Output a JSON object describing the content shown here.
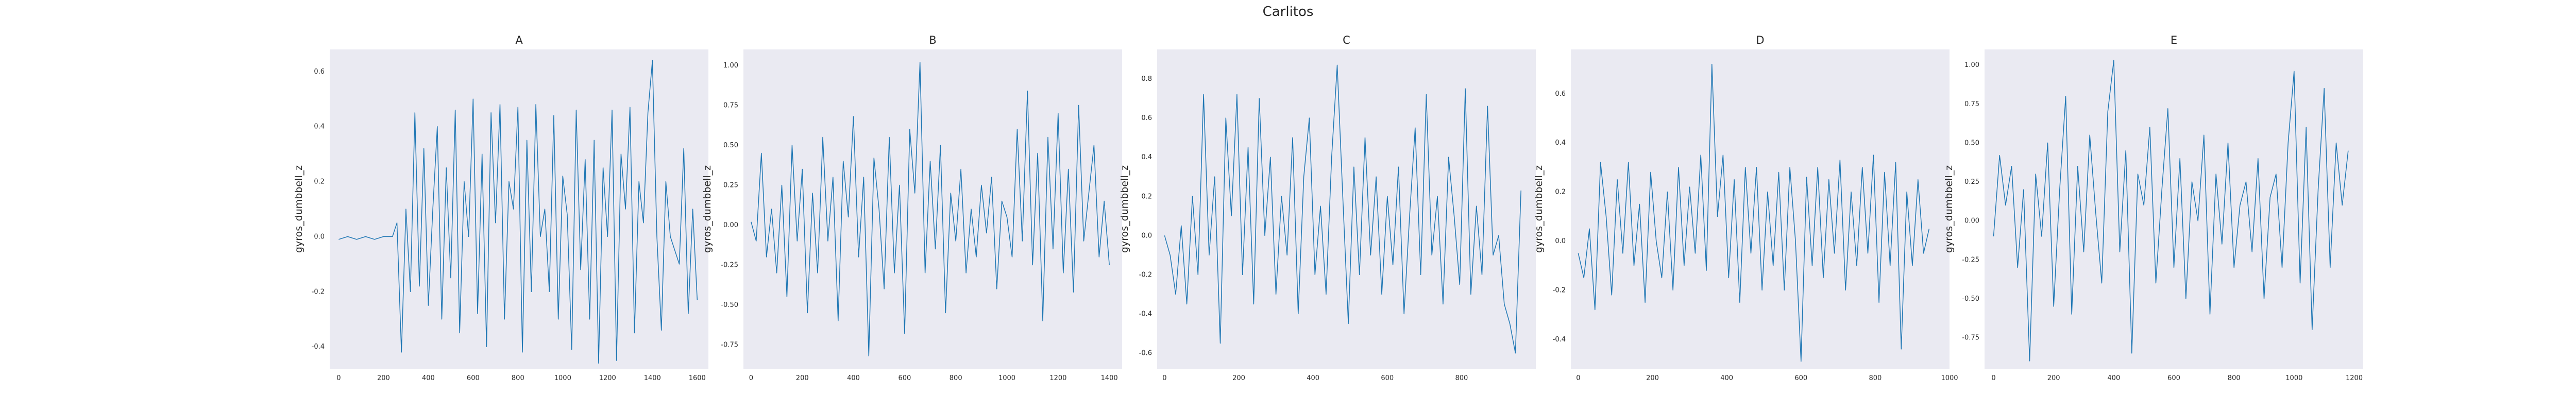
{
  "figure": {
    "title": "Carlitos"
  },
  "chart_data": [
    {
      "type": "line",
      "title": "A",
      "xlabel": "",
      "ylabel": "gyros_dumbbell_z",
      "xlim": [
        -40,
        1650
      ],
      "ylim": [
        -0.48,
        0.68
      ],
      "xticks": [
        0,
        200,
        400,
        600,
        800,
        1000,
        1200,
        1400,
        1600
      ],
      "yticks": [
        -0.4,
        -0.2,
        0.0,
        0.2,
        0.4,
        0.6
      ],
      "ytick_labels": [
        "-0.4",
        "-0.2",
        "0.0",
        "0.2",
        "0.4",
        "0.6"
      ],
      "color": "#1f77b4",
      "series": [
        {
          "x": [
            0,
            40,
            80,
            120,
            160,
            200,
            240,
            260,
            280,
            300,
            320,
            340,
            360,
            380,
            400,
            420,
            440,
            460,
            480,
            500,
            520,
            540,
            560,
            580,
            600,
            620,
            640,
            660,
            680,
            700,
            720,
            740,
            760,
            780,
            800,
            820,
            840,
            860,
            880,
            900,
            920,
            940,
            960,
            980,
            1000,
            1020,
            1040,
            1060,
            1080,
            1100,
            1120,
            1140,
            1160,
            1180,
            1200,
            1220,
            1240,
            1260,
            1280,
            1300,
            1320,
            1340,
            1360,
            1380,
            1400,
            1420,
            1440,
            1460,
            1480,
            1500,
            1520,
            1540,
            1560,
            1580,
            1600
          ],
          "y": [
            -0.01,
            0.0,
            -0.01,
            0.0,
            -0.01,
            0.0,
            0.0,
            0.05,
            -0.42,
            0.1,
            -0.2,
            0.45,
            -0.18,
            0.32,
            -0.25,
            0.1,
            0.4,
            -0.3,
            0.25,
            -0.15,
            0.46,
            -0.35,
            0.2,
            0.0,
            0.5,
            -0.28,
            0.3,
            -0.4,
            0.45,
            0.05,
            0.48,
            -0.3,
            0.2,
            0.1,
            0.47,
            -0.42,
            0.35,
            -0.2,
            0.48,
            0.0,
            0.1,
            -0.2,
            0.44,
            -0.3,
            0.22,
            0.08,
            -0.41,
            0.46,
            -0.12,
            0.28,
            -0.3,
            0.35,
            -0.46,
            0.25,
            0.0,
            0.46,
            -0.45,
            0.3,
            0.1,
            0.47,
            -0.35,
            0.2,
            0.05,
            0.45,
            0.64,
            0.0,
            -0.34,
            0.2,
            0.0,
            -0.05,
            -0.1,
            0.32,
            -0.28,
            0.1,
            -0.23
          ]
        }
      ]
    },
    {
      "type": "line",
      "title": "B",
      "xlabel": "",
      "ylabel": "gyros_dumbbell_z",
      "xlim": [
        -30,
        1450
      ],
      "ylim": [
        -0.9,
        1.1
      ],
      "xticks": [
        0,
        200,
        400,
        600,
        800,
        1000,
        1200,
        1400
      ],
      "yticks": [
        -0.75,
        -0.5,
        -0.25,
        0.0,
        0.25,
        0.5,
        0.75,
        1.0
      ],
      "ytick_labels": [
        "-0.75",
        "-0.50",
        "-0.25",
        "0.00",
        "0.25",
        "0.50",
        "0.75",
        "1.00"
      ],
      "color": "#1f77b4",
      "series": [
        {
          "x": [
            0,
            20,
            40,
            60,
            80,
            100,
            120,
            140,
            160,
            180,
            200,
            220,
            240,
            260,
            280,
            300,
            320,
            340,
            360,
            380,
            400,
            420,
            440,
            460,
            480,
            500,
            520,
            540,
            560,
            580,
            600,
            620,
            640,
            660,
            680,
            700,
            720,
            740,
            760,
            780,
            800,
            820,
            840,
            860,
            880,
            900,
            920,
            940,
            960,
            980,
            1000,
            1020,
            1040,
            1060,
            1080,
            1100,
            1120,
            1140,
            1160,
            1180,
            1200,
            1220,
            1240,
            1260,
            1280,
            1300,
            1320,
            1340,
            1360,
            1380,
            1400
          ],
          "y": [
            0.02,
            -0.1,
            0.45,
            -0.2,
            0.1,
            -0.3,
            0.25,
            -0.45,
            0.5,
            -0.1,
            0.35,
            -0.55,
            0.2,
            -0.3,
            0.55,
            -0.1,
            0.3,
            -0.6,
            0.4,
            0.05,
            0.68,
            -0.2,
            0.3,
            -0.82,
            0.42,
            0.1,
            -0.4,
            0.55,
            -0.3,
            0.25,
            -0.68,
            0.6,
            0.2,
            1.02,
            -0.3,
            0.4,
            -0.15,
            0.5,
            -0.55,
            0.2,
            -0.1,
            0.35,
            -0.3,
            0.1,
            -0.2,
            0.25,
            -0.05,
            0.3,
            -0.4,
            0.15,
            0.05,
            -0.2,
            0.6,
            -0.1,
            0.84,
            -0.25,
            0.45,
            -0.6,
            0.55,
            -0.15,
            0.7,
            -0.3,
            0.35,
            -0.42,
            0.75,
            -0.1,
            0.2,
            0.5,
            -0.2,
            0.15,
            -0.25
          ]
        }
      ]
    },
    {
      "type": "line",
      "title": "C",
      "xlabel": "",
      "ylabel": "gyros_dumbbell_z",
      "xlim": [
        -20,
        1000
      ],
      "ylim": [
        -0.68,
        0.95
      ],
      "xticks": [
        0,
        200,
        400,
        600,
        800
      ],
      "yticks": [
        -0.6,
        -0.4,
        -0.2,
        0.0,
        0.2,
        0.4,
        0.6,
        0.8
      ],
      "ytick_labels": [
        "-0.6",
        "-0.4",
        "-0.2",
        "0.0",
        "0.2",
        "0.4",
        "0.6",
        "0.8"
      ],
      "color": "#1f77b4",
      "series": [
        {
          "x": [
            0,
            15,
            30,
            45,
            60,
            75,
            90,
            105,
            120,
            135,
            150,
            165,
            180,
            195,
            210,
            225,
            240,
            255,
            270,
            285,
            300,
            315,
            330,
            345,
            360,
            375,
            390,
            405,
            420,
            435,
            450,
            465,
            480,
            495,
            510,
            525,
            540,
            555,
            570,
            585,
            600,
            615,
            630,
            645,
            660,
            675,
            690,
            705,
            720,
            735,
            750,
            765,
            780,
            795,
            810,
            825,
            840,
            855,
            870,
            885,
            900,
            915,
            930,
            945,
            960
          ],
          "y": [
            0.0,
            -0.1,
            -0.3,
            0.05,
            -0.35,
            0.2,
            -0.2,
            0.72,
            -0.1,
            0.3,
            -0.55,
            0.6,
            0.1,
            0.72,
            -0.2,
            0.45,
            -0.35,
            0.7,
            0.0,
            0.4,
            -0.3,
            0.2,
            -0.1,
            0.5,
            -0.4,
            0.3,
            0.6,
            -0.2,
            0.15,
            -0.3,
            0.4,
            0.87,
            0.2,
            -0.45,
            0.35,
            -0.2,
            0.5,
            -0.1,
            0.3,
            -0.3,
            0.2,
            -0.15,
            0.35,
            -0.4,
            0.1,
            0.55,
            -0.2,
            0.72,
            -0.1,
            0.2,
            -0.35,
            0.4,
            0.1,
            -0.25,
            0.75,
            -0.3,
            0.15,
            -0.2,
            0.66,
            -0.1,
            0.0,
            -0.35,
            -0.45,
            -0.6,
            0.23
          ]
        }
      ]
    },
    {
      "type": "line",
      "title": "D",
      "xlabel": "",
      "ylabel": "gyros_dumbbell_z",
      "xlim": [
        -20,
        1000
      ],
      "ylim": [
        -0.52,
        0.78
      ],
      "xticks": [
        0,
        200,
        400,
        600,
        800,
        1000
      ],
      "yticks": [
        -0.4,
        -0.2,
        0.0,
        0.2,
        0.4,
        0.6
      ],
      "ytick_labels": [
        "-0.4",
        "-0.2",
        "0.0",
        "0.2",
        "0.4",
        "0.6"
      ],
      "color": "#1f77b4",
      "series": [
        {
          "x": [
            0,
            15,
            30,
            45,
            60,
            75,
            90,
            105,
            120,
            135,
            150,
            165,
            180,
            195,
            210,
            225,
            240,
            255,
            270,
            285,
            300,
            315,
            330,
            345,
            360,
            375,
            390,
            405,
            420,
            435,
            450,
            465,
            480,
            495,
            510,
            525,
            540,
            555,
            570,
            585,
            600,
            615,
            630,
            645,
            660,
            675,
            690,
            705,
            720,
            735,
            750,
            765,
            780,
            795,
            810,
            825,
            840,
            855,
            870,
            885,
            900,
            915,
            930,
            945
          ],
          "y": [
            -0.05,
            -0.15,
            0.05,
            -0.28,
            0.32,
            0.1,
            -0.22,
            0.25,
            -0.05,
            0.32,
            -0.1,
            0.15,
            -0.25,
            0.28,
            0.0,
            -0.15,
            0.2,
            -0.2,
            0.3,
            -0.1,
            0.22,
            -0.05,
            0.35,
            -0.12,
            0.72,
            0.1,
            0.35,
            -0.15,
            0.25,
            -0.25,
            0.3,
            -0.05,
            0.3,
            -0.2,
            0.2,
            -0.1,
            0.28,
            -0.2,
            0.3,
            0.0,
            -0.49,
            0.26,
            -0.1,
            0.3,
            -0.15,
            0.25,
            -0.05,
            0.33,
            -0.2,
            0.2,
            -0.1,
            0.3,
            -0.05,
            0.35,
            -0.25,
            0.28,
            -0.1,
            0.32,
            -0.44,
            0.2,
            -0.1,
            0.25,
            -0.05,
            0.05
          ]
        }
      ]
    },
    {
      "type": "line",
      "title": "E",
      "xlabel": "",
      "ylabel": "gyros_dumbbell_z",
      "xlim": [
        -30,
        1230
      ],
      "ylim": [
        -0.95,
        1.1
      ],
      "xticks": [
        0,
        200,
        400,
        600,
        800,
        1000,
        1200
      ],
      "yticks": [
        -0.75,
        -0.5,
        -0.25,
        0.0,
        0.25,
        0.5,
        0.75,
        1.0
      ],
      "ytick_labels": [
        "-0.75",
        "-0.50",
        "-0.25",
        "0.00",
        "0.25",
        "0.50",
        "0.75",
        "1.00"
      ],
      "color": "#1f77b4",
      "series": [
        {
          "x": [
            0,
            20,
            40,
            60,
            80,
            100,
            120,
            140,
            160,
            180,
            200,
            220,
            240,
            260,
            280,
            300,
            320,
            340,
            360,
            380,
            400,
            420,
            440,
            460,
            480,
            500,
            520,
            540,
            560,
            580,
            600,
            620,
            640,
            660,
            680,
            700,
            720,
            740,
            760,
            780,
            800,
            820,
            840,
            860,
            880,
            900,
            920,
            940,
            960,
            980,
            1000,
            1020,
            1040,
            1060,
            1080,
            1100,
            1120,
            1140,
            1160,
            1180
          ],
          "y": [
            -0.1,
            0.42,
            0.1,
            0.35,
            -0.3,
            0.2,
            -0.9,
            0.3,
            -0.1,
            0.5,
            -0.55,
            0.2,
            0.8,
            -0.6,
            0.35,
            -0.2,
            0.55,
            0.05,
            -0.4,
            0.7,
            1.03,
            -0.2,
            0.45,
            -0.85,
            0.3,
            0.1,
            0.6,
            -0.4,
            0.2,
            0.72,
            -0.3,
            0.4,
            -0.5,
            0.25,
            0.0,
            0.55,
            -0.6,
            0.3,
            -0.15,
            0.5,
            -0.3,
            0.1,
            0.25,
            -0.2,
            0.4,
            -0.5,
            0.15,
            0.3,
            -0.3,
            0.5,
            0.96,
            -0.4,
            0.6,
            -0.7,
            0.2,
            0.85,
            -0.3,
            0.5,
            0.1,
            0.45
          ]
        }
      ]
    }
  ]
}
